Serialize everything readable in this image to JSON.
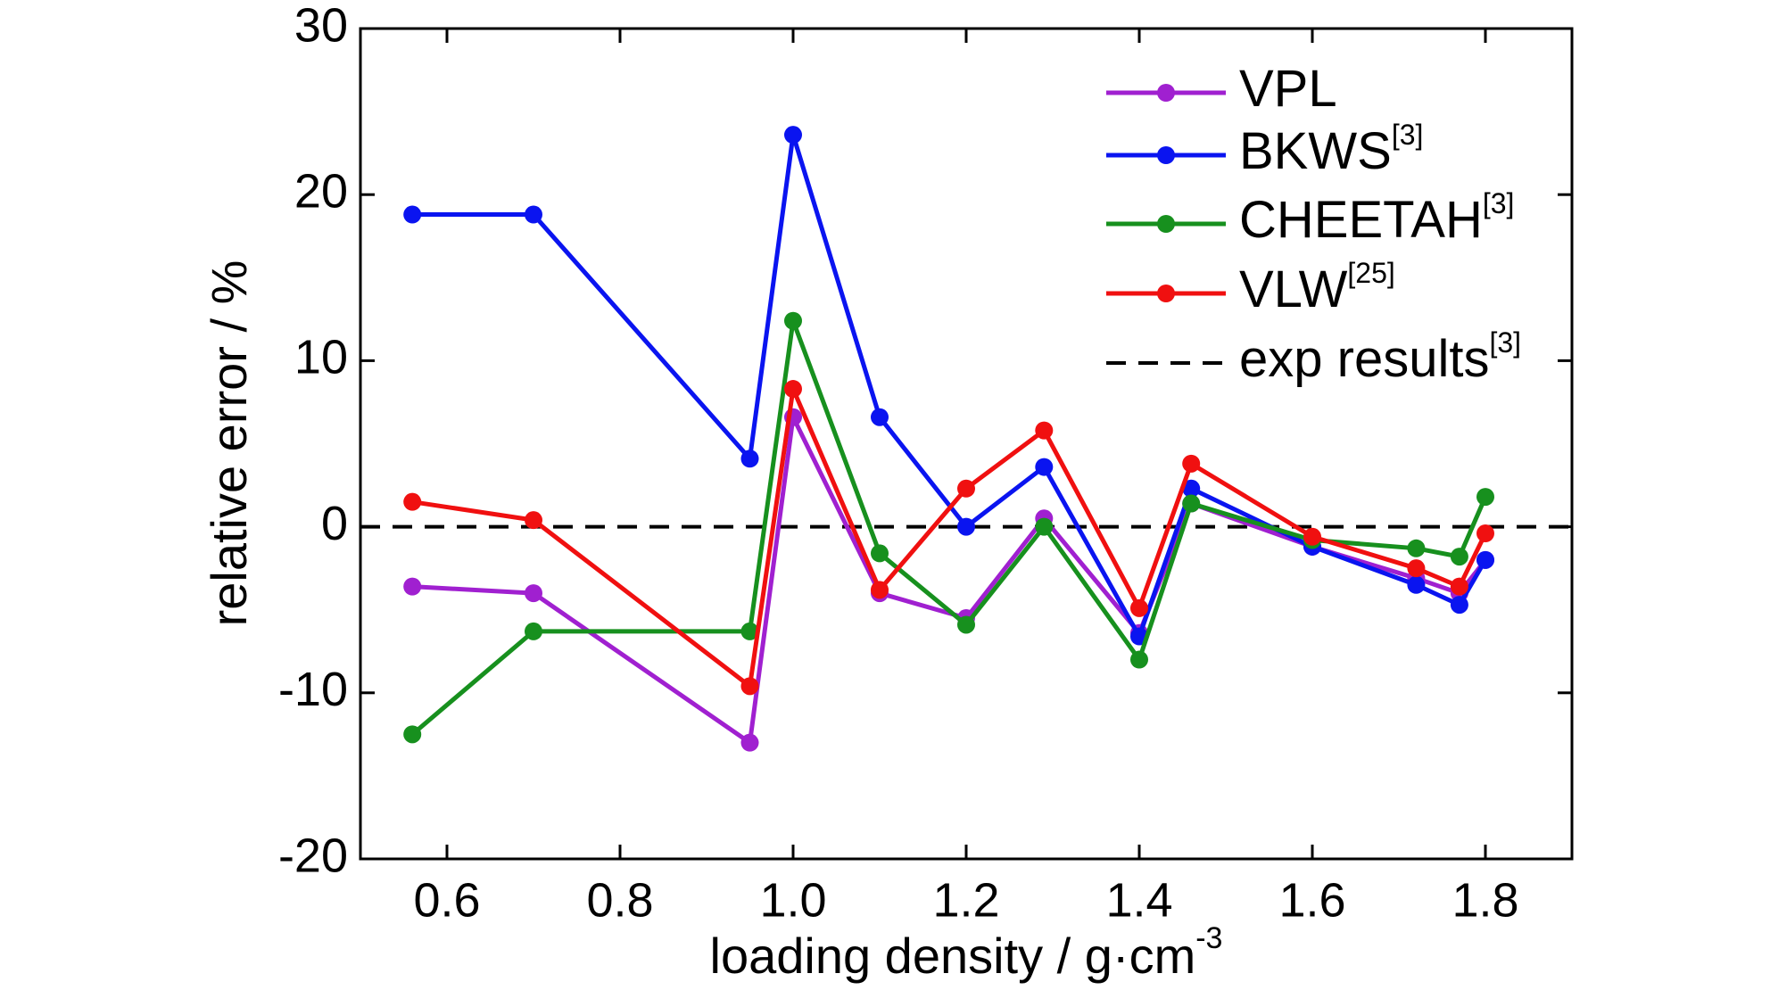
{
  "chart_data": {
    "type": "line",
    "ylabel": "relative error / %",
    "xlabel": "loading density / g·cm",
    "xlabel_sup": "-3",
    "x": [
      0.56,
      0.7,
      0.95,
      1.0,
      1.1,
      1.2,
      1.29,
      1.4,
      1.46,
      1.6,
      1.72,
      1.77,
      1.8
    ],
    "series": [
      {
        "name": "VPL",
        "ref": null,
        "color": "#a020d0",
        "values": [
          -3.6,
          -4.0,
          -13.0,
          6.6,
          -4.0,
          -5.5,
          0.5,
          -6.4,
          1.4,
          -1.2,
          -3.1,
          -4.0,
          -2.0
        ]
      },
      {
        "name": "BKWS",
        "ref": "[3]",
        "color": "#0a14f0",
        "values": [
          18.8,
          18.8,
          4.1,
          23.6,
          6.6,
          0.0,
          3.6,
          -6.6,
          2.3,
          -1.2,
          -3.5,
          -4.7,
          -2.0
        ]
      },
      {
        "name": "CHEETAH",
        "ref": "[3]",
        "color": "#17901e",
        "values": [
          -12.5,
          -6.3,
          -6.3,
          12.4,
          -1.6,
          -5.9,
          0.0,
          -8.0,
          1.4,
          -0.8,
          -1.3,
          -1.8,
          1.8
        ]
      },
      {
        "name": "VLW",
        "ref": "[25]",
        "color": "#f01010",
        "values": [
          1.5,
          0.4,
          -9.6,
          8.3,
          -3.8,
          2.3,
          5.8,
          -4.9,
          3.8,
          -0.6,
          -2.5,
          -3.6,
          -0.4
        ]
      }
    ],
    "reference_line": {
      "name": "exp results",
      "ref": "[3]",
      "value": 0,
      "color": "#000000"
    },
    "xlim": [
      0.5,
      1.9
    ],
    "ylim": [
      -20,
      30
    ],
    "xticks": [
      0.6,
      0.8,
      {
        "value": 1,
        "label": "1.0"
      },
      1.2,
      1.4,
      1.6,
      1.8
    ],
    "yticks": [
      -20,
      -10,
      0,
      10,
      20,
      30
    ],
    "legend": "upper right"
  }
}
